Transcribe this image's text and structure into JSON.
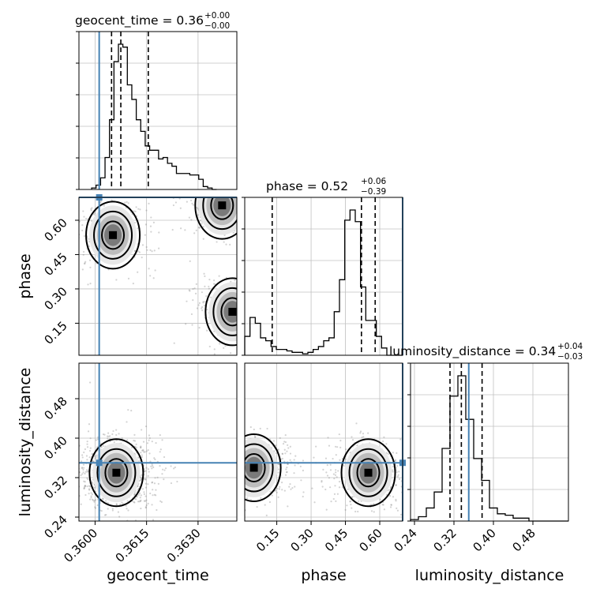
{
  "chart_data": {
    "type": "corner",
    "parameters": [
      "geocent_time",
      "phase",
      "luminosity_distance"
    ],
    "truth": {
      "geocent_time": 0.36012,
      "phase": 0.7,
      "luminosity_distance": 0.35
    },
    "colors": {
      "truth": "#4682b4",
      "hist": "#000000",
      "grid": "#c0c0c0",
      "points": "#808080"
    },
    "titles": [
      {
        "param": "geocent_time",
        "text": "geocent_time = 0.36",
        "plus": "+0.00",
        "minus": "−0.00"
      },
      {
        "param": "phase",
        "text": "phase = 0.52",
        "plus": "+0.06",
        "minus": "−0.39"
      },
      {
        "param": "luminosity_distance",
        "text": "luminosity_distance = 0.34",
        "plus": "+0.04",
        "minus": "−0.03"
      }
    ],
    "axis_labels": {
      "x": [
        "geocent_time",
        "phase",
        "luminosity_distance"
      ],
      "y": [
        "phase",
        "luminosity_distance"
      ]
    },
    "ticks": {
      "geocent_time": [
        "0.3600",
        "0.3615",
        "0.3630"
      ],
      "phase": [
        "0.15",
        "0.30",
        "0.45",
        "0.60"
      ],
      "luminosity_distance": [
        "0.24",
        "0.32",
        "0.40",
        "0.48"
      ]
    },
    "ranges": {
      "geocent_time": [
        0.35953,
        0.36413
      ],
      "phase": [
        0.01,
        0.7
      ],
      "luminosity_distance": [
        0.232,
        0.552
      ]
    },
    "histograms": {
      "geocent_time": {
        "edges": [
          0.3599,
          0.36003,
          0.36016,
          0.36029,
          0.36042,
          0.36055,
          0.36068,
          0.36081,
          0.36094,
          0.36107,
          0.3612,
          0.36133,
          0.36146,
          0.36159,
          0.36172,
          0.36185,
          0.36198,
          0.36211,
          0.36224,
          0.36237,
          0.3625,
          0.36263,
          0.36276,
          0.36289,
          0.36302,
          0.36315,
          0.36328,
          0.36341,
          0.36354
        ],
        "counts": [
          1,
          3,
          8,
          22,
          48,
          88,
          100,
          98,
          72,
          62,
          48,
          40,
          30,
          27,
          27,
          21,
          22,
          18,
          16,
          11,
          11,
          11,
          10,
          10,
          7,
          2,
          1,
          0
        ]
      },
      "phase": {
        "edges": [
          0.01,
          0.033,
          0.056,
          0.079,
          0.102,
          0.125,
          0.148,
          0.171,
          0.194,
          0.217,
          0.24,
          0.263,
          0.286,
          0.309,
          0.332,
          0.355,
          0.378,
          0.401,
          0.424,
          0.447,
          0.47,
          0.493,
          0.516,
          0.539,
          0.562,
          0.585,
          0.608,
          0.631,
          0.654,
          0.677,
          0.7
        ],
        "counts": [
          13,
          26,
          22,
          12,
          10,
          6,
          4,
          4,
          3,
          2,
          2,
          1,
          2,
          4,
          6,
          10,
          12,
          30,
          52,
          93,
          100,
          92,
          47,
          24,
          24,
          13,
          5,
          0,
          0,
          0
        ]
      },
      "luminosity_distance": {
        "edges": [
          0.232,
          0.248,
          0.264,
          0.28,
          0.296,
          0.312,
          0.328,
          0.344,
          0.36,
          0.376,
          0.392,
          0.408,
          0.424,
          0.44,
          0.456,
          0.472,
          0.488,
          0.504,
          0.52,
          0.536,
          0.552
        ],
        "counts": [
          1,
          3,
          9,
          20,
          50,
          86,
          100,
          70,
          43,
          28,
          9,
          5,
          4,
          2,
          2,
          0,
          0,
          0,
          0,
          0
        ]
      }
    },
    "quantiles": {
      "geocent_time": [
        0.36048,
        0.36075,
        0.36155
      ],
      "phase": [
        0.13,
        0.52,
        0.58
      ],
      "luminosity_distance": [
        0.312,
        0.335,
        0.377
      ]
    },
    "density_peaks": {
      "phase_vs_geocent_time": [
        [
          0.36052,
          0.535
        ],
        [
          0.3637,
          0.665
        ],
        [
          0.364,
          0.2
        ]
      ],
      "luminosity_distance_vs_geocent_time": [
        [
          0.36062,
          0.33
        ]
      ],
      "luminosity_distance_vs_phase": [
        [
          0.55,
          0.33
        ],
        [
          0.05,
          0.34
        ]
      ]
    },
    "grid": true
  }
}
